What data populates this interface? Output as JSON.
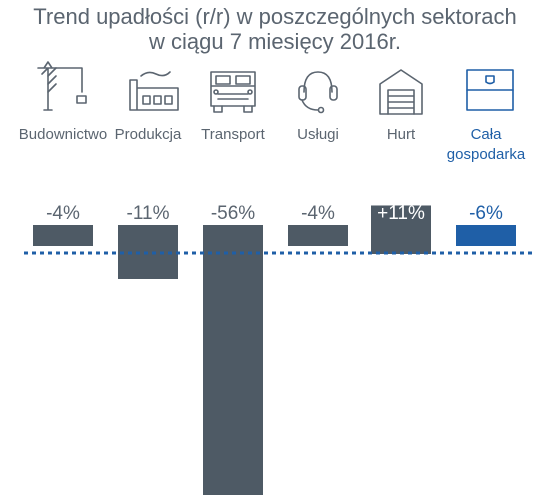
{
  "title_lines": [
    "Trend upadłości (r/r) w poszczególnych sektorach",
    "w ciągu 7 miesięcy 2016r."
  ],
  "colors": {
    "bar": "#4e5a65",
    "highlight": "#1f5fa7",
    "text": "#5b6570",
    "baseline": "#1f5fa7"
  },
  "chart_data": {
    "type": "bar",
    "title": "Trend upadłości (r/r) w poszczególnych sektorach w ciągu 7 miesięcy 2016r.",
    "categories": [
      "Budownictwo",
      "Produkcja",
      "Transport",
      "Usługi",
      "Hurt",
      "Cała gospodarka"
    ],
    "values": [
      -4,
      -11,
      -56,
      -4,
      11,
      -6
    ],
    "value_labels": [
      "-4%",
      "-11%",
      "-56%",
      "-4%",
      "+11%",
      "-6%"
    ],
    "icons": [
      "crane-icon",
      "factory-icon",
      "truck-icon",
      "headset-icon",
      "warehouse-icon",
      "flag-icon"
    ],
    "highlight_index": 5,
    "baseline": "dotted",
    "grid": false,
    "legend": "none"
  }
}
